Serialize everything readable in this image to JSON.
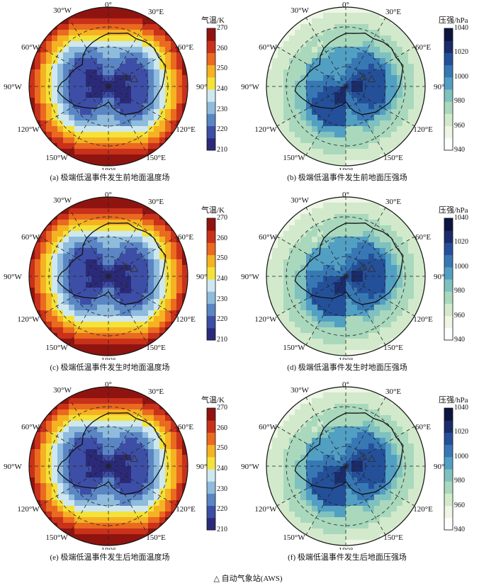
{
  "colorbars": {
    "temperature": {
      "title": "气温/K",
      "ticks": [
        "270",
        "260",
        "250",
        "240",
        "230",
        "220",
        "210"
      ],
      "range": [
        210,
        270
      ],
      "colors": [
        "#2b2a7a",
        "#3d4ea6",
        "#5b86c4",
        "#8fbbdc",
        "#cfe8f0",
        "#f4e23a",
        "#f5b222",
        "#ea6a20",
        "#c9311b",
        "#8f1410"
      ]
    },
    "pressure": {
      "title": "压强/hPa",
      "ticks": [
        "1040",
        "1020",
        "1000",
        "980",
        "960",
        "940"
      ],
      "range": [
        940,
        1040
      ],
      "colors": [
        "#ffffff",
        "#eef6e6",
        "#d2eacb",
        "#a9d8bd",
        "#7fc1bf",
        "#529fc4",
        "#3778b4",
        "#24509a",
        "#1b2c6a",
        "#0c1440"
      ]
    }
  },
  "map_labels": {
    "top": "0°",
    "bottom": "180°",
    "left": "90°W",
    "right": "90°E",
    "nw_upper": "30°W",
    "nw_lower": "60°W",
    "ne_upper": "30°E",
    "ne_lower": "60°E",
    "sw_upper": "120°W",
    "sw_lower": "150°W",
    "se_upper": "120°E",
    "se_lower": "150°E"
  },
  "panels": [
    {
      "caption": "(a) 极端低温事件发生前地面温度场",
      "field": "temperature"
    },
    {
      "caption": "(b) 极端低温事件发生前地面压强场",
      "field": "pressure"
    },
    {
      "caption": "(c) 极端低温事件发生时地面温度场",
      "field": "temperature"
    },
    {
      "caption": "(d) 极端低温事件发生时地面压强场",
      "field": "pressure"
    },
    {
      "caption": "(e) 极端低温事件发生后地面温度场",
      "field": "temperature"
    },
    {
      "caption": "(f) 极端低温事件发生后地面压强场",
      "field": "pressure"
    }
  ],
  "legend": {
    "symbol": "△",
    "label": "自动气象站(AWS)"
  }
}
